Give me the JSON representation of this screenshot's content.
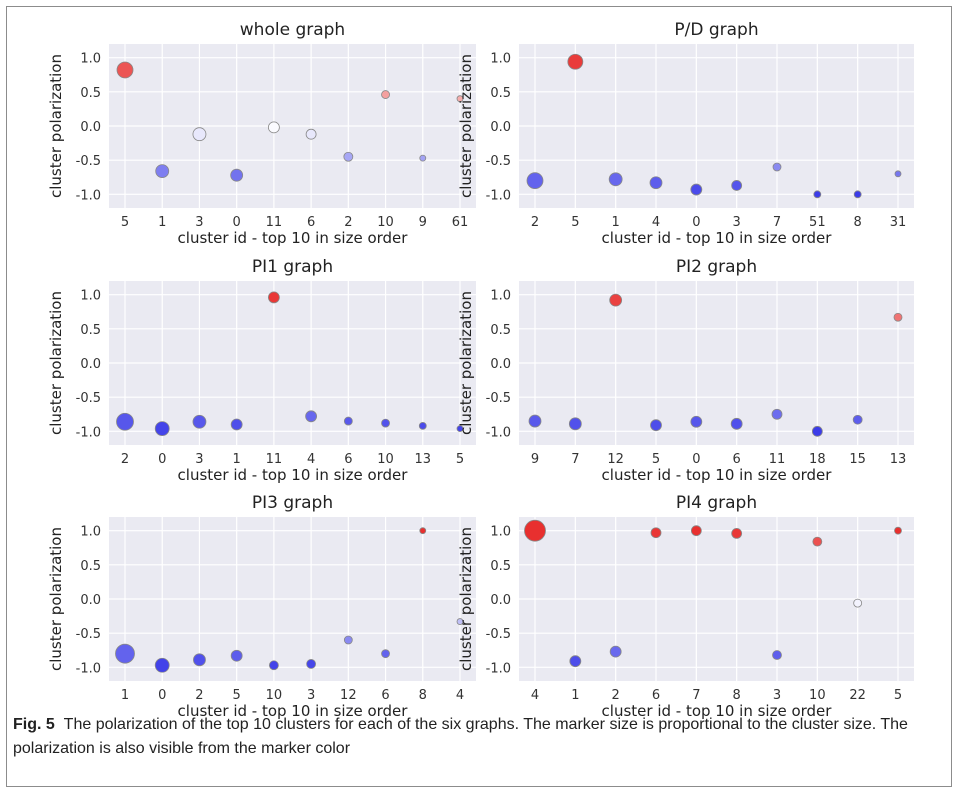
{
  "figure": {
    "caption_label": "Fig. 5",
    "caption_text": "The polarization of the top 10 clusters for each of the six graphs. The marker size is proportional to the cluster size. The polarization is also visible from the marker color"
  },
  "chart_data": [
    {
      "type": "scatter",
      "title": "whole graph",
      "xlabel": "cluster id - top 10 in size order",
      "ylabel": "cluster polarization",
      "ylim": [
        -1.2,
        1.2
      ],
      "yticks": [
        "1.0",
        "0.5",
        "0.0",
        "-0.5",
        "-1.0"
      ],
      "grid": true,
      "categories": [
        "5",
        "1",
        "3",
        "0",
        "11",
        "6",
        "2",
        "10",
        "9",
        "61"
      ],
      "values": [
        0.82,
        -0.66,
        -0.12,
        -0.72,
        -0.02,
        -0.12,
        -0.45,
        0.46,
        -0.47,
        0.4
      ],
      "marker_sizes": [
        14,
        11,
        11,
        10,
        9,
        8,
        7,
        6,
        4,
        4
      ]
    },
    {
      "type": "scatter",
      "title": "P/D graph",
      "xlabel": "cluster id - top 10 in size order",
      "ylabel": "cluster polarization",
      "ylim": [
        -1.2,
        1.2
      ],
      "yticks": [
        "1.0",
        "0.5",
        "0.0",
        "-0.5",
        "-1.0"
      ],
      "grid": true,
      "categories": [
        "2",
        "5",
        "1",
        "4",
        "0",
        "3",
        "7",
        "51",
        "8",
        "31"
      ],
      "values": [
        -0.8,
        0.94,
        -0.78,
        -0.83,
        -0.93,
        -0.87,
        -0.6,
        -1.0,
        -1.0,
        -0.7
      ],
      "marker_sizes": [
        14,
        13,
        11,
        10,
        9,
        8,
        6,
        5,
        5,
        4
      ]
    },
    {
      "type": "scatter",
      "title": "PI1 graph",
      "xlabel": "cluster id - top 10 in size order",
      "ylabel": "cluster polarization",
      "ylim": [
        -1.2,
        1.2
      ],
      "yticks": [
        "1.0",
        "0.5",
        "0.0",
        "-0.5",
        "-1.0"
      ],
      "grid": true,
      "categories": [
        "2",
        "0",
        "3",
        "1",
        "11",
        "4",
        "6",
        "10",
        "13",
        "5"
      ],
      "values": [
        -0.86,
        -0.96,
        -0.86,
        -0.9,
        0.96,
        -0.78,
        -0.85,
        -0.88,
        -0.92,
        -0.96
      ],
      "marker_sizes": [
        15,
        12,
        11,
        9,
        9,
        9,
        6,
        6,
        5,
        4
      ]
    },
    {
      "type": "scatter",
      "title": "PI2 graph",
      "xlabel": "cluster id - top 10 in size order",
      "ylabel": "cluster polarization",
      "ylim": [
        -1.2,
        1.2
      ],
      "yticks": [
        "1.0",
        "0.5",
        "0.0",
        "-0.5",
        "-1.0"
      ],
      "grid": true,
      "categories": [
        "9",
        "7",
        "12",
        "5",
        "0",
        "6",
        "11",
        "18",
        "15",
        "13"
      ],
      "values": [
        -0.85,
        -0.89,
        0.92,
        -0.91,
        -0.86,
        -0.89,
        -0.75,
        -1.0,
        -0.83,
        0.67
      ],
      "marker_sizes": [
        10,
        10,
        10,
        9,
        9,
        9,
        8,
        8,
        7,
        6
      ]
    },
    {
      "type": "scatter",
      "title": "PI3 graph",
      "xlabel": "cluster id - top 10 in size order",
      "ylabel": "cluster polarization",
      "ylim": [
        -1.2,
        1.2
      ],
      "yticks": [
        "1.0",
        "0.5",
        "0.0",
        "-0.5",
        "-1.0"
      ],
      "grid": true,
      "categories": [
        "1",
        "0",
        "2",
        "5",
        "10",
        "3",
        "12",
        "6",
        "8",
        "4"
      ],
      "values": [
        -0.8,
        -0.97,
        -0.89,
        -0.83,
        -0.97,
        -0.95,
        -0.6,
        -0.8,
        1.0,
        -0.33
      ],
      "marker_sizes": [
        17,
        12,
        10,
        9,
        7,
        7,
        6,
        6,
        4,
        4
      ]
    },
    {
      "type": "scatter",
      "title": "PI4 graph",
      "xlabel": "cluster id - top 10 in size order",
      "ylabel": "cluster polarization",
      "ylim": [
        -1.2,
        1.2
      ],
      "yticks": [
        "1.0",
        "0.5",
        "0.0",
        "-0.5",
        "-1.0"
      ],
      "grid": true,
      "categories": [
        "4",
        "1",
        "2",
        "6",
        "7",
        "8",
        "3",
        "10",
        "22",
        "5"
      ],
      "values": [
        1.0,
        -0.91,
        -0.77,
        0.97,
        1.0,
        0.96,
        -0.82,
        0.84,
        -0.06,
        1.0
      ],
      "marker_sizes": [
        19,
        9,
        9,
        8,
        8,
        8,
        7,
        7,
        6,
        5
      ]
    }
  ],
  "colors": {
    "plot_background": "#eaeaf2",
    "grid": "#ffffff",
    "positive": "#e8302f",
    "negative": "#3c3ce8",
    "neutral": "#ffffff",
    "marker_edge": "#888888",
    "tick_text": "#333333"
  }
}
